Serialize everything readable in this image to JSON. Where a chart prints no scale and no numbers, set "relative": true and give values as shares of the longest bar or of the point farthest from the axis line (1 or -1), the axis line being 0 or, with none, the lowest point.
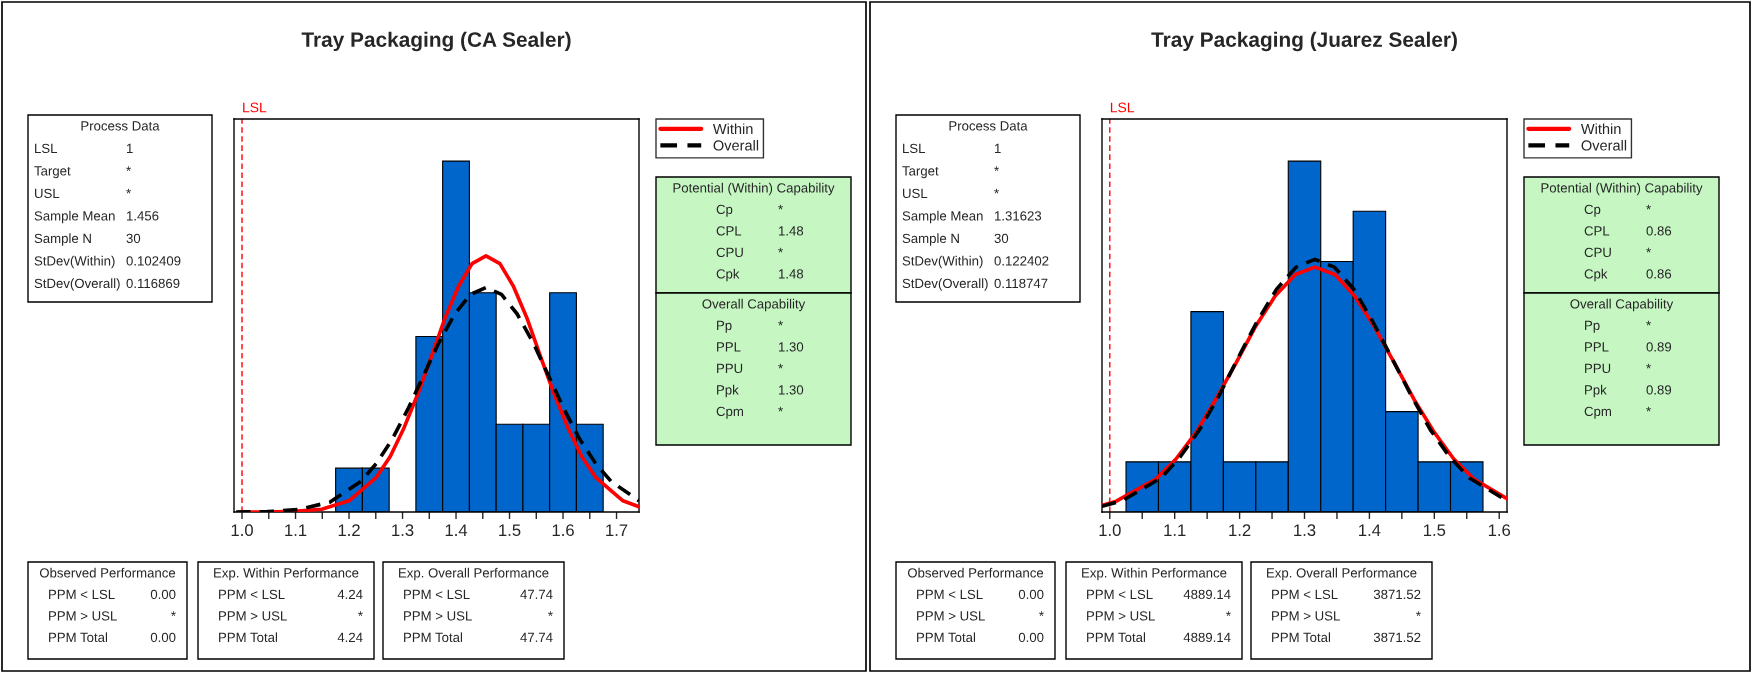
{
  "chart_data": [
    {
      "type": "histogram",
      "title": "Tray Packaging (CA Sealer)",
      "relative": true,
      "color": "#0066cc",
      "bins": [
        1.175,
        1.225,
        1.275,
        1.325,
        1.375,
        1.425,
        1.475,
        1.525,
        1.575,
        1.625,
        1.675
      ],
      "values": [
        0.125,
        0.125,
        0,
        0.5,
        1,
        0.625,
        0.25,
        0.25,
        0.625,
        0.25
      ],
      "series": [
        {
          "name": "Within",
          "type": "line",
          "color": "#ff0000",
          "line_style": "solid",
          "x": [
            0.995,
            1.046,
            1.098,
            1.149,
            1.2,
            1.251,
            1.277,
            1.302,
            1.328,
            1.354,
            1.379,
            1.405,
            1.43,
            1.456,
            1.482,
            1.507,
            1.533,
            1.558,
            1.584,
            1.61,
            1.635,
            1.661,
            1.712,
            1.742
          ],
          "values": [
            0,
            0,
            0.002,
            0.008,
            0.032,
            0.099,
            0.158,
            0.237,
            0.334,
            0.443,
            0.551,
            0.644,
            0.708,
            0.73,
            0.708,
            0.644,
            0.551,
            0.443,
            0.334,
            0.237,
            0.158,
            0.099,
            0.032,
            0.015
          ]
        },
        {
          "name": "Overall",
          "type": "line",
          "color": "#000000",
          "line_style": "dashed",
          "x": [
            0.989,
            1.047,
            1.105,
            1.164,
            1.222,
            1.251,
            1.281,
            1.31,
            1.339,
            1.368,
            1.398,
            1.427,
            1.456,
            1.485,
            1.514,
            1.544,
            1.573,
            1.602,
            1.631,
            1.661,
            1.69,
            1.742
          ],
          "values": [
            0,
            0.001,
            0.007,
            0.028,
            0.087,
            0.138,
            0.208,
            0.293,
            0.388,
            0.483,
            0.565,
            0.62,
            0.64,
            0.62,
            0.565,
            0.483,
            0.388,
            0.293,
            0.208,
            0.138,
            0.087,
            0.032
          ]
        }
      ],
      "xlim": [
        0.985,
        1.742
      ],
      "xticks": [
        {
          "value": 1.0,
          "label": "1.0"
        },
        {
          "value": 1.05,
          "label": null
        },
        {
          "value": 1.1,
          "label": "1.1"
        },
        {
          "value": 1.15,
          "label": null
        },
        {
          "value": 1.2,
          "label": "1.2"
        },
        {
          "value": 1.25,
          "label": null
        },
        {
          "value": 1.3,
          "label": "1.3"
        },
        {
          "value": 1.35,
          "label": null
        },
        {
          "value": 1.4,
          "label": "1.4"
        },
        {
          "value": 1.45,
          "label": null
        },
        {
          "value": 1.5,
          "label": "1.5"
        },
        {
          "value": 1.55,
          "label": null
        },
        {
          "value": 1.6,
          "label": "1.6"
        },
        {
          "value": 1.65,
          "label": null
        },
        {
          "value": 1.7,
          "label": "1.7"
        }
      ],
      "ref_lines": [
        {
          "axis": "x",
          "value": 1,
          "label": "LSL",
          "color": "#ff0000",
          "line_style": "dashed"
        }
      ],
      "legend": "top right",
      "tick_labels": "x",
      "grid": false,
      "annotations": [
        "Process Data\nLSL  1\nTarget  *\nUSL  *\nSample Mean  1.456\nSample N  30\nStDev(Within)  0.102409\nStDev(Overall)  0.116869",
        "Potential (Within) Capability\nCp  *\nCPL  1.48\nCPU  *\nCpk  1.48",
        "Overall Capability\nPp  *\nPPL  1.30\nPPU  *\nPpk  1.30\nCpm  *",
        "Observed Performance\nPPM < LSL  0.00\nPPM > USL  *\nPPM Total  0.00",
        "Exp. Within Performance\nPPM < LSL  4.24\nPPM > USL  *\nPPM Total  4.24",
        "Exp. Overall Performance\nPPM < LSL  47.74\nPPM > USL  *\nPPM Total  47.74"
      ]
    },
    {
      "type": "histogram",
      "title": "Tray Packaging (Juarez Sealer)",
      "relative": true,
      "color": "#0066cc",
      "bins": [
        1.025,
        1.075,
        1.125,
        1.175,
        1.225,
        1.275,
        1.325,
        1.375,
        1.425,
        1.475,
        1.525,
        1.575
      ],
      "values": [
        0.143,
        0.143,
        0.571,
        0.143,
        0.143,
        1,
        0.714,
        0.857,
        0.286,
        0.143,
        0.143
      ],
      "series": [
        {
          "name": "Within",
          "type": "line",
          "color": "#ff0000",
          "line_style": "solid",
          "x": [
            0.988,
            1.01,
            1.071,
            1.102,
            1.133,
            1.163,
            1.194,
            1.224,
            1.255,
            1.286,
            1.316,
            1.347,
            1.377,
            1.408,
            1.439,
            1.469,
            1.5,
            1.53,
            1.561,
            1.612
          ],
          "values": [
            0.019,
            0.031,
            0.094,
            0.151,
            0.227,
            0.32,
            0.423,
            0.527,
            0.616,
            0.677,
            0.698,
            0.677,
            0.616,
            0.527,
            0.423,
            0.32,
            0.227,
            0.151,
            0.094,
            0.038
          ]
        },
        {
          "name": "Overall",
          "type": "line",
          "color": "#000000",
          "line_style": "dashed",
          "x": [
            0.988,
            1.019,
            1.079,
            1.108,
            1.138,
            1.168,
            1.197,
            1.227,
            1.257,
            1.287,
            1.316,
            1.346,
            1.376,
            1.405,
            1.435,
            1.465,
            1.494,
            1.524,
            1.554,
            1.612
          ],
          "values": [
            0.016,
            0.032,
            0.097,
            0.156,
            0.234,
            0.33,
            0.437,
            0.543,
            0.635,
            0.698,
            0.72,
            0.698,
            0.635,
            0.543,
            0.437,
            0.33,
            0.234,
            0.156,
            0.097,
            0.032
          ]
        }
      ],
      "xlim": [
        0.988,
        1.612
      ],
      "xticks": [
        {
          "value": 1.0,
          "label": "1.0"
        },
        {
          "value": 1.05,
          "label": null
        },
        {
          "value": 1.1,
          "label": "1.1"
        },
        {
          "value": 1.15,
          "label": null
        },
        {
          "value": 1.2,
          "label": "1.2"
        },
        {
          "value": 1.25,
          "label": null
        },
        {
          "value": 1.3,
          "label": "1.3"
        },
        {
          "value": 1.35,
          "label": null
        },
        {
          "value": 1.4,
          "label": "1.4"
        },
        {
          "value": 1.45,
          "label": null
        },
        {
          "value": 1.5,
          "label": "1.5"
        },
        {
          "value": 1.55,
          "label": null
        },
        {
          "value": 1.6,
          "label": "1.6"
        }
      ],
      "ref_lines": [
        {
          "axis": "x",
          "value": 1,
          "label": "LSL",
          "color": "#ff0000",
          "line_style": "dashed"
        }
      ],
      "legend": "top right",
      "tick_labels": "x",
      "grid": false,
      "annotations": [
        "Process Data\nLSL  1\nTarget  *\nUSL  *\nSample Mean  1.31623\nSample N  30\nStDev(Within)  0.122402\nStDev(Overall)  0.118747",
        "Potential (Within) Capability\nCp  *\nCPL  0.86\nCPU  *\nCpk  0.86",
        "Overall Capability\nPp  *\nPPL  0.89\nPPU  *\nPpk  0.89\nCpm  *",
        "Observed Performance\nPPM < LSL  0.00\nPPM > USL  *\nPPM Total  0.00",
        "Exp. Within Performance\nPPM < LSL  4889.14\nPPM > USL  *\nPPM Total  4889.14",
        "Exp. Overall Performance\nPPM < LSL  3871.52\nPPM > USL  *\nPPM Total  3871.52"
      ]
    }
  ]
}
